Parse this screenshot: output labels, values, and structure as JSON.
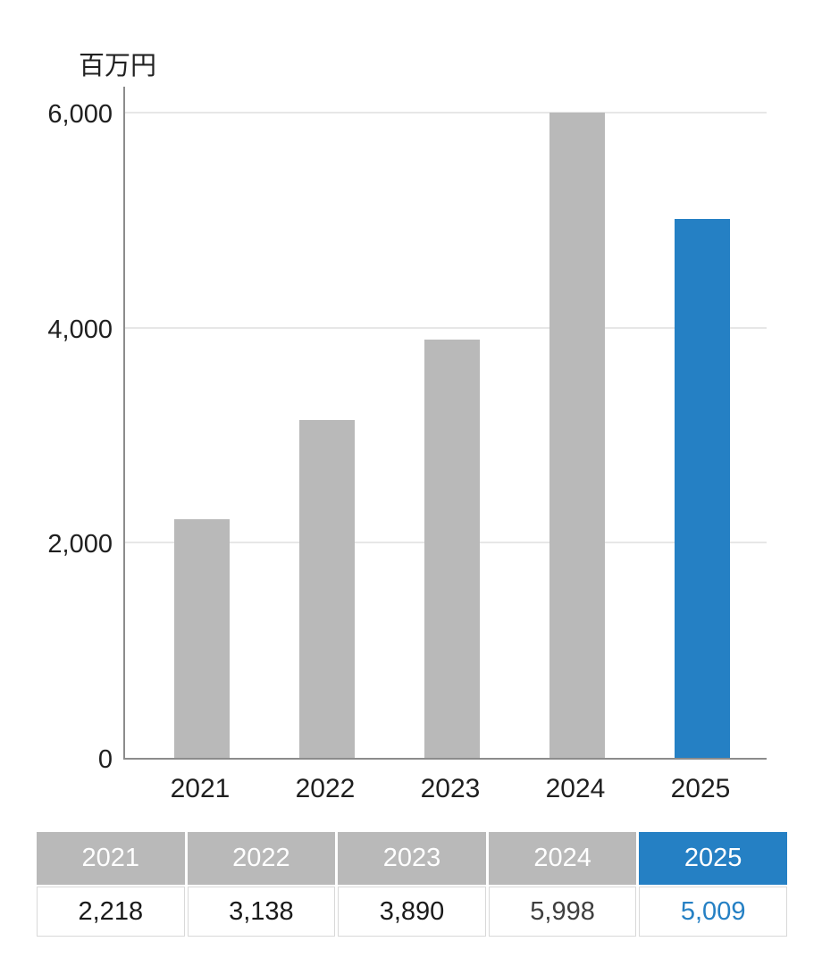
{
  "chart": {
    "unit_label": "百万円"
  },
  "chart_data": {
    "type": "bar",
    "title": "",
    "xlabel": "",
    "ylabel": "百万円",
    "categories": [
      "2021",
      "2022",
      "2023",
      "2024",
      "2025"
    ],
    "values": [
      2218,
      3138,
      3890,
      5998,
      5009
    ],
    "bar_colors": [
      "#b9b9b9",
      "#b9b9b9",
      "#b9b9b9",
      "#b9b9b9",
      "#2580c4"
    ],
    "highlight_index": 4,
    "ylim": [
      0,
      6000
    ],
    "yticks": [
      {
        "value": 0,
        "label": "0"
      },
      {
        "value": 2000,
        "label": "2,000"
      },
      {
        "value": 4000,
        "label": "4,000"
      },
      {
        "value": 6000,
        "label": "6,000"
      }
    ],
    "grid": "horizontal",
    "legend": "none"
  },
  "table": {
    "headers": [
      "2021",
      "2022",
      "2023",
      "2024",
      "2025"
    ],
    "values": [
      "2,218",
      "3,138",
      "3,890",
      "5,998",
      "5,009"
    ],
    "header_bg": [
      "#b9b9b9",
      "#b9b9b9",
      "#b9b9b9",
      "#b9b9b9",
      "#2580c4"
    ],
    "header_text_color": "#ffffff",
    "value_colors": [
      "#1a1a1a",
      "#1a1a1a",
      "#1a1a1a",
      "#3f3f3f",
      "#2580c4"
    ]
  },
  "colors": {
    "bar_gray": "#b9b9b9",
    "accent_blue": "#2580c4",
    "axis": "#8c8c8c",
    "gridline": "#e7e7e7",
    "text": "#1f1f1f",
    "table_border": "#d9d9d9"
  }
}
